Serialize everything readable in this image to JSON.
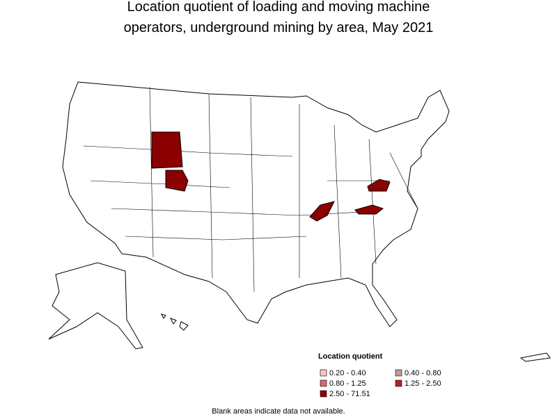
{
  "title": [
    "Location quotient of loading and moving machine",
    "operators, underground mining by area, May 2021"
  ],
  "legend": {
    "title": "Location quotient",
    "items": [
      {
        "label": "0.20 - 0.40",
        "color": "#f5c6c6"
      },
      {
        "label": "0.40 - 0.80",
        "color": "#c49a9a"
      },
      {
        "label": "0.80 - 1.25",
        "color": "#d96a6a"
      },
      {
        "label": "1.25 - 2.50",
        "color": "#b22222"
      },
      {
        "label": "2.50 - 71.51",
        "color": "#8b0000"
      }
    ]
  },
  "footnote": "Blank areas indicate data not available."
}
